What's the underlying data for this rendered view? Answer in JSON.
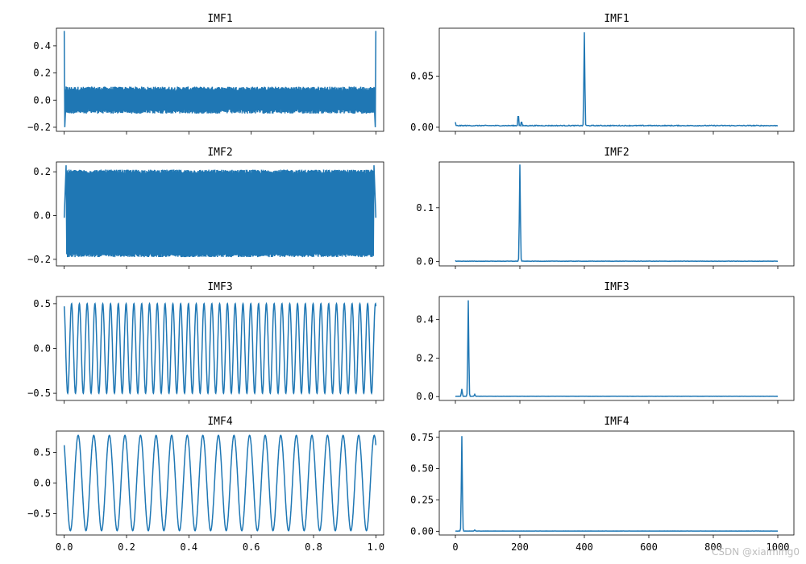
{
  "watermark": "CSDN @xiaiming0",
  "colors": {
    "line": "#1f77b4",
    "axis": "#000000",
    "background": "#ffffff"
  },
  "chart_data": [
    {
      "type": "line",
      "title": "IMF1",
      "domain": "time",
      "xlim": [
        -0.025,
        1.025
      ],
      "ylim": [
        -0.23,
        0.53
      ],
      "xticks": [
        0.0,
        0.2,
        0.4,
        0.6,
        0.8,
        1.0
      ],
      "xticklabels": [
        "0.0",
        "0.2",
        "0.4",
        "0.6",
        "0.8",
        "1.0"
      ],
      "show_xticklabels": false,
      "yticks": [
        -0.2,
        0.0,
        0.2,
        0.4
      ],
      "yticklabels": [
        "−0.2",
        "0.0",
        "0.2",
        "0.4"
      ],
      "signal": {
        "kind": "noise_band",
        "amplitude": 0.1,
        "edge_spike_start": [
          0.51,
          -0.2
        ],
        "edge_spike_end": [
          0.51,
          -0.2
        ]
      }
    },
    {
      "type": "line",
      "title": "IMF1",
      "domain": "spectrum",
      "xlim": [
        -50,
        1050
      ],
      "ylim": [
        -0.004,
        0.097
      ],
      "xticks": [
        0,
        200,
        400,
        600,
        800,
        1000
      ],
      "xticklabels": [
        "0",
        "200",
        "400",
        "600",
        "800",
        "1000"
      ],
      "show_xticklabels": false,
      "yticks": [
        0.0,
        0.05
      ],
      "yticklabels": [
        "0.00",
        "0.05"
      ],
      "signal": {
        "start_value": 0.005,
        "baseline": 0.002,
        "peaks": [
          {
            "x": 400,
            "y": 0.093
          },
          {
            "x": 195,
            "y": 0.013
          },
          {
            "x": 205,
            "y": 0.006
          },
          {
            "x": 600,
            "y": 0.002
          }
        ]
      }
    },
    {
      "type": "line",
      "title": "IMF2",
      "domain": "time",
      "xlim": [
        -0.025,
        1.025
      ],
      "ylim": [
        -0.23,
        0.245
      ],
      "xticks": [
        0.0,
        0.2,
        0.4,
        0.6,
        0.8,
        1.0
      ],
      "xticklabels": [
        "0.0",
        "0.2",
        "0.4",
        "0.6",
        "0.8",
        "1.0"
      ],
      "show_xticklabels": false,
      "yticks": [
        -0.2,
        0.0,
        0.2
      ],
      "yticklabels": [
        "−0.2",
        "0.0",
        "0.2"
      ],
      "signal": {
        "kind": "dense_band",
        "upper": 0.21,
        "lower": -0.19,
        "edge_spike_start": [
          0.23,
          -0.01
        ],
        "edge_spike_end": [
          0.23,
          -0.01
        ]
      }
    },
    {
      "type": "line",
      "title": "IMF2",
      "domain": "spectrum",
      "xlim": [
        -50,
        1050
      ],
      "ylim": [
        -0.008,
        0.185
      ],
      "xticks": [
        0,
        200,
        400,
        600,
        800,
        1000
      ],
      "xticklabels": [
        "0",
        "200",
        "400",
        "600",
        "800",
        "1000"
      ],
      "show_xticklabels": false,
      "yticks": [
        0.0,
        0.1
      ],
      "yticklabels": [
        "0.0",
        "0.1"
      ],
      "signal": {
        "start_value": 0.002,
        "baseline": 0.001,
        "peaks": [
          {
            "x": 200,
            "y": 0.18
          },
          {
            "x": 600,
            "y": 0.001
          }
        ]
      }
    },
    {
      "type": "line",
      "title": "IMF3",
      "domain": "time",
      "xlim": [
        -0.025,
        1.025
      ],
      "ylim": [
        -0.58,
        0.58
      ],
      "xticks": [
        0.0,
        0.2,
        0.4,
        0.6,
        0.8,
        1.0
      ],
      "xticklabels": [
        "0.0",
        "0.2",
        "0.4",
        "0.6",
        "0.8",
        "1.0"
      ],
      "show_xticklabels": false,
      "yticks": [
        -0.5,
        0.0,
        0.5
      ],
      "yticklabels": [
        "−0.5",
        "0.0",
        "0.5"
      ],
      "signal": {
        "kind": "sine",
        "frequency": 40,
        "amplitude": 0.5,
        "phase_value": 0.47
      }
    },
    {
      "type": "line",
      "title": "IMF3",
      "domain": "spectrum",
      "xlim": [
        -50,
        1050
      ],
      "ylim": [
        -0.02,
        0.52
      ],
      "xticks": [
        0,
        200,
        400,
        600,
        800,
        1000
      ],
      "xticklabels": [
        "0",
        "200",
        "400",
        "600",
        "800",
        "1000"
      ],
      "show_xticklabels": false,
      "yticks": [
        0.0,
        0.2,
        0.4
      ],
      "yticklabels": [
        "0.0",
        "0.2",
        "0.4"
      ],
      "signal": {
        "start_value": 0.0,
        "baseline": 0.002,
        "peaks": [
          {
            "x": 40,
            "y": 0.5
          },
          {
            "x": 20,
            "y": 0.04
          },
          {
            "x": 60,
            "y": 0.012
          }
        ]
      }
    },
    {
      "type": "line",
      "title": "IMF4",
      "domain": "time",
      "xlim": [
        -0.025,
        1.025
      ],
      "ylim": [
        -0.85,
        0.85
      ],
      "xticks": [
        0.0,
        0.2,
        0.4,
        0.6,
        0.8,
        1.0
      ],
      "xticklabels": [
        "0.0",
        "0.2",
        "0.4",
        "0.6",
        "0.8",
        "1.0"
      ],
      "show_xticklabels": true,
      "yticks": [
        -0.5,
        0.0,
        0.5
      ],
      "yticklabels": [
        "−0.5",
        "0.0",
        "0.5"
      ],
      "signal": {
        "kind": "sine",
        "frequency": 20,
        "amplitude": 0.78,
        "phase_value": 0.62
      }
    },
    {
      "type": "line",
      "title": "IMF4",
      "domain": "spectrum",
      "xlim": [
        -50,
        1050
      ],
      "ylim": [
        -0.03,
        0.8
      ],
      "xticks": [
        0,
        200,
        400,
        600,
        800,
        1000
      ],
      "xticklabels": [
        "0",
        "200",
        "400",
        "600",
        "800",
        "1000"
      ],
      "show_xticklabels": true,
      "yticks": [
        0.0,
        0.25,
        0.5,
        0.75
      ],
      "yticklabels": [
        "0.00",
        "0.25",
        "0.50",
        "0.75"
      ],
      "signal": {
        "start_value": 0.0,
        "baseline": 0.002,
        "peaks": [
          {
            "x": 20,
            "y": 0.76
          },
          {
            "x": 60,
            "y": 0.01
          }
        ]
      }
    }
  ]
}
